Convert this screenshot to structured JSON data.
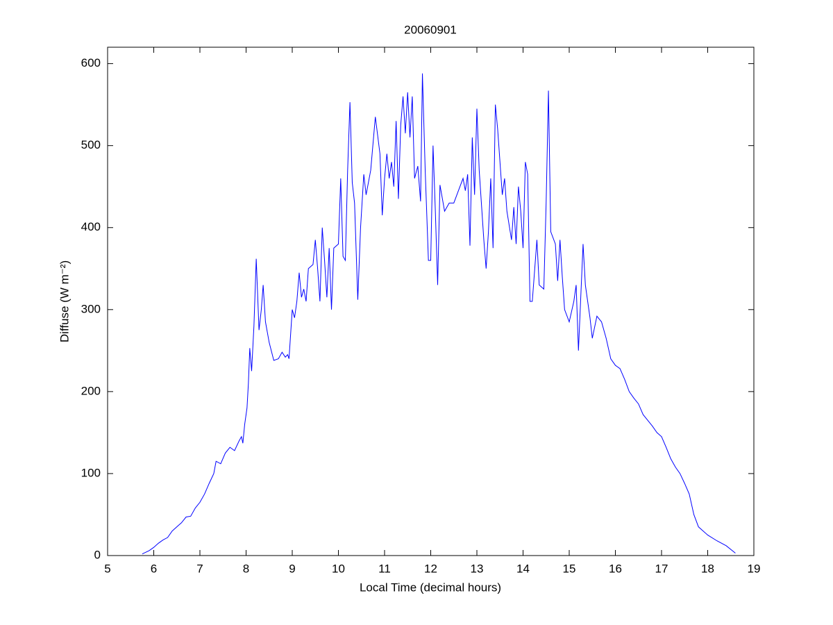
{
  "chart_data": {
    "type": "line",
    "title": "20060901",
    "xlabel": "Local Time (decimal hours)",
    "ylabel": "Diffuse (W m⁻²)",
    "xlim": [
      5,
      19
    ],
    "xticks": [
      5,
      6,
      7,
      8,
      9,
      10,
      11,
      12,
      13,
      14,
      15,
      16,
      17,
      18,
      19
    ],
    "ylim": [
      0,
      620
    ],
    "yticks": [
      0,
      100,
      200,
      300,
      400,
      500,
      600
    ],
    "grid": false,
    "series": [
      {
        "color": "#0000ff",
        "x": [
          5.75,
          5.9,
          6.0,
          6.1,
          6.2,
          6.3,
          6.4,
          6.5,
          6.6,
          6.7,
          6.8,
          6.9,
          7.0,
          7.1,
          7.2,
          7.3,
          7.35,
          7.45,
          7.55,
          7.65,
          7.75,
          7.85,
          7.9,
          7.93,
          7.97,
          8.02,
          8.05,
          8.08,
          8.12,
          8.17,
          8.22,
          8.28,
          8.33,
          8.37,
          8.42,
          8.5,
          8.6,
          8.7,
          8.78,
          8.85,
          8.9,
          8.93,
          9.0,
          9.05,
          9.1,
          9.15,
          9.2,
          9.25,
          9.3,
          9.35,
          9.45,
          9.5,
          9.55,
          9.6,
          9.65,
          9.7,
          9.75,
          9.8,
          9.85,
          9.9,
          10.0,
          10.05,
          10.1,
          10.15,
          10.2,
          10.25,
          10.3,
          10.35,
          10.42,
          10.48,
          10.55,
          10.6,
          10.7,
          10.8,
          10.9,
          10.95,
          11.0,
          11.05,
          11.1,
          11.15,
          11.2,
          11.25,
          11.3,
          11.35,
          11.4,
          11.45,
          11.5,
          11.55,
          11.6,
          11.65,
          11.72,
          11.78,
          11.82,
          11.88,
          11.95,
          12.0,
          12.05,
          12.1,
          12.15,
          12.2,
          12.3,
          12.4,
          12.5,
          12.6,
          12.7,
          12.75,
          12.8,
          12.85,
          12.9,
          12.95,
          13.0,
          13.05,
          13.15,
          13.2,
          13.25,
          13.3,
          13.35,
          13.4,
          13.45,
          13.55,
          13.6,
          13.65,
          13.75,
          13.8,
          13.85,
          13.9,
          13.95,
          14.0,
          14.05,
          14.1,
          14.15,
          14.2,
          14.3,
          14.35,
          14.45,
          14.5,
          14.55,
          14.6,
          14.7,
          14.75,
          14.8,
          14.85,
          14.9,
          15.0,
          15.1,
          15.15,
          15.2,
          15.3,
          15.35,
          15.45,
          15.5,
          15.6,
          15.7,
          15.8,
          15.9,
          16.0,
          16.1,
          16.2,
          16.3,
          16.4,
          16.5,
          16.6,
          16.7,
          16.8,
          16.9,
          17.0,
          17.1,
          17.2,
          17.3,
          17.4,
          17.5,
          17.6,
          17.7,
          17.8,
          17.9,
          18.0,
          18.2,
          18.4,
          18.6
        ],
        "values": [
          2,
          6,
          10,
          15,
          19,
          22,
          30,
          35,
          40,
          47,
          48,
          58,
          65,
          75,
          88,
          100,
          115,
          112,
          125,
          132,
          128,
          140,
          145,
          137,
          160,
          180,
          210,
          253,
          225,
          280,
          362,
          275,
          300,
          330,
          285,
          260,
          238,
          240,
          248,
          242,
          245,
          240,
          300,
          290,
          310,
          345,
          315,
          325,
          310,
          350,
          355,
          385,
          350,
          310,
          400,
          360,
          315,
          375,
          300,
          375,
          380,
          460,
          365,
          360,
          470,
          553,
          455,
          430,
          312,
          400,
          465,
          440,
          470,
          535,
          490,
          415,
          460,
          490,
          460,
          480,
          450,
          530,
          435,
          525,
          560,
          515,
          565,
          510,
          560,
          460,
          475,
          432,
          588,
          470,
          360,
          360,
          500,
          420,
          330,
          452,
          420,
          430,
          430,
          445,
          460,
          445,
          465,
          378,
          510,
          440,
          545,
          470,
          385,
          350,
          395,
          460,
          375,
          550,
          520,
          440,
          460,
          420,
          385,
          425,
          380,
          450,
          420,
          375,
          480,
          465,
          310,
          310,
          385,
          330,
          325,
          430,
          567,
          395,
          380,
          335,
          385,
          340,
          300,
          285,
          310,
          330,
          250,
          380,
          330,
          290,
          265,
          292,
          285,
          265,
          240,
          232,
          228,
          215,
          200,
          192,
          185,
          172,
          165,
          158,
          150,
          145,
          132,
          118,
          108,
          100,
          88,
          75,
          50,
          35,
          30,
          25,
          18,
          12,
          3
        ]
      }
    ]
  }
}
